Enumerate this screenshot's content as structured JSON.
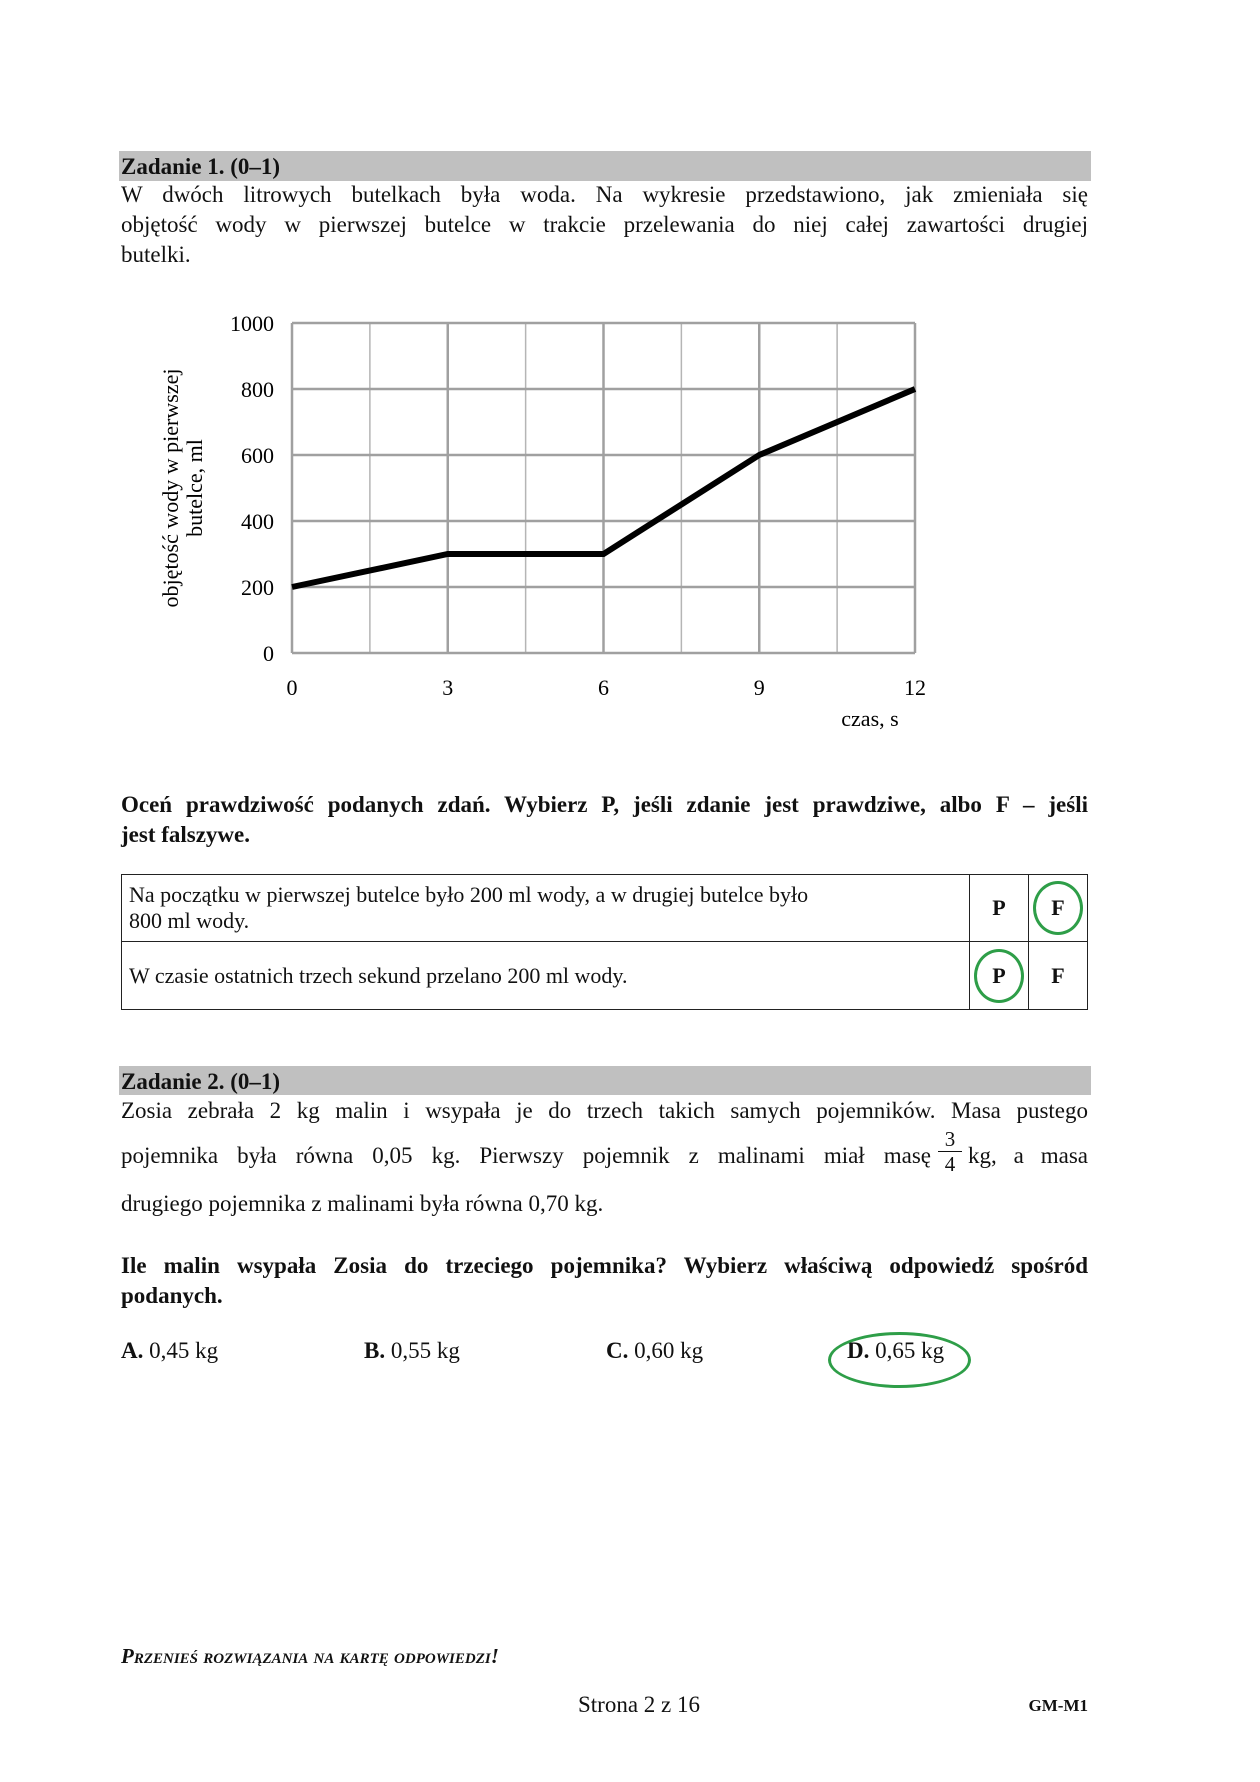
{
  "task1": {
    "header": "Zadanie 1. (0–1)",
    "intro_lines": [
      "W dwóch litrowych butelkach była woda. Na wykresie przedstawiono, jak zmieniała się",
      "objętość wody w pierwszej butelce w trakcie przelewania do niej całej zawartości drugiej",
      "butelki."
    ],
    "instruction_lines": [
      "Oceń prawdziwość podanych zdań. Wybierz P, jeśli zdanie jest prawdziwe, albo F – jeśli",
      "jest falszywe."
    ],
    "statements": [
      {
        "text_lines": [
          "Na początku w pierwszej butelce było 200 ml wody, a w drugiej butelce było",
          "800 ml wody."
        ],
        "p": "P",
        "f": "F",
        "selected": "F"
      },
      {
        "text_lines": [
          "W czasie ostatnich trzech sekund przelano 200 ml wody."
        ],
        "p": "P",
        "f": "F",
        "selected": "P"
      }
    ]
  },
  "chart_data": {
    "type": "line",
    "x": [
      0,
      3,
      6,
      9,
      12
    ],
    "y": [
      200,
      300,
      300,
      600,
      800
    ],
    "xlabel": "czas, s",
    "ylabel_lines": [
      "objętość wody w pierwszej",
      "butelce, ml"
    ],
    "xlim": [
      0,
      12
    ],
    "ylim": [
      0,
      1000
    ],
    "xticks": [
      "0",
      "3",
      "6",
      "9",
      "12"
    ],
    "yticks": [
      "0",
      "200",
      "400",
      "600",
      "800",
      "1000"
    ],
    "grid": true,
    "line_color": "#000000",
    "grid_color": "#a0a0a0"
  },
  "task2": {
    "header": "Zadanie 2. (0–1)",
    "line1": "Zosia zebrała 2 kg malin i wsypała je do trzech takich samych pojemników. Masa pustego",
    "line2_before": "pojemnika była równa 0,05 kg. Pierwszy pojemnik z malinami miał masę",
    "fraction": {
      "numerator": "3",
      "denominator": "4"
    },
    "line2_after": "kg, a masa",
    "line3": "drugiego pojemnika z malinami była równa 0,70 kg.",
    "question_lines": [
      "Ile malin wsypała Zosia do trzeciego pojemnika? Wybierz właściwą odpowiedź spośród",
      "podanych."
    ],
    "options": [
      {
        "letter": "A.",
        "value": "0,45 kg"
      },
      {
        "letter": "B.",
        "value": "0,55 kg"
      },
      {
        "letter": "C.",
        "value": "0,60 kg"
      },
      {
        "letter": "D.",
        "value": "0,65 kg"
      }
    ],
    "selected": "D"
  },
  "footer": {
    "notice": "Przenieś rozwiązania na kartę odpowiedzi!",
    "page": "Strona 2 z 16",
    "code": "GM-M1"
  },
  "colors": {
    "header_bar": "#c0c0c0",
    "mark": "#2e9e48"
  }
}
